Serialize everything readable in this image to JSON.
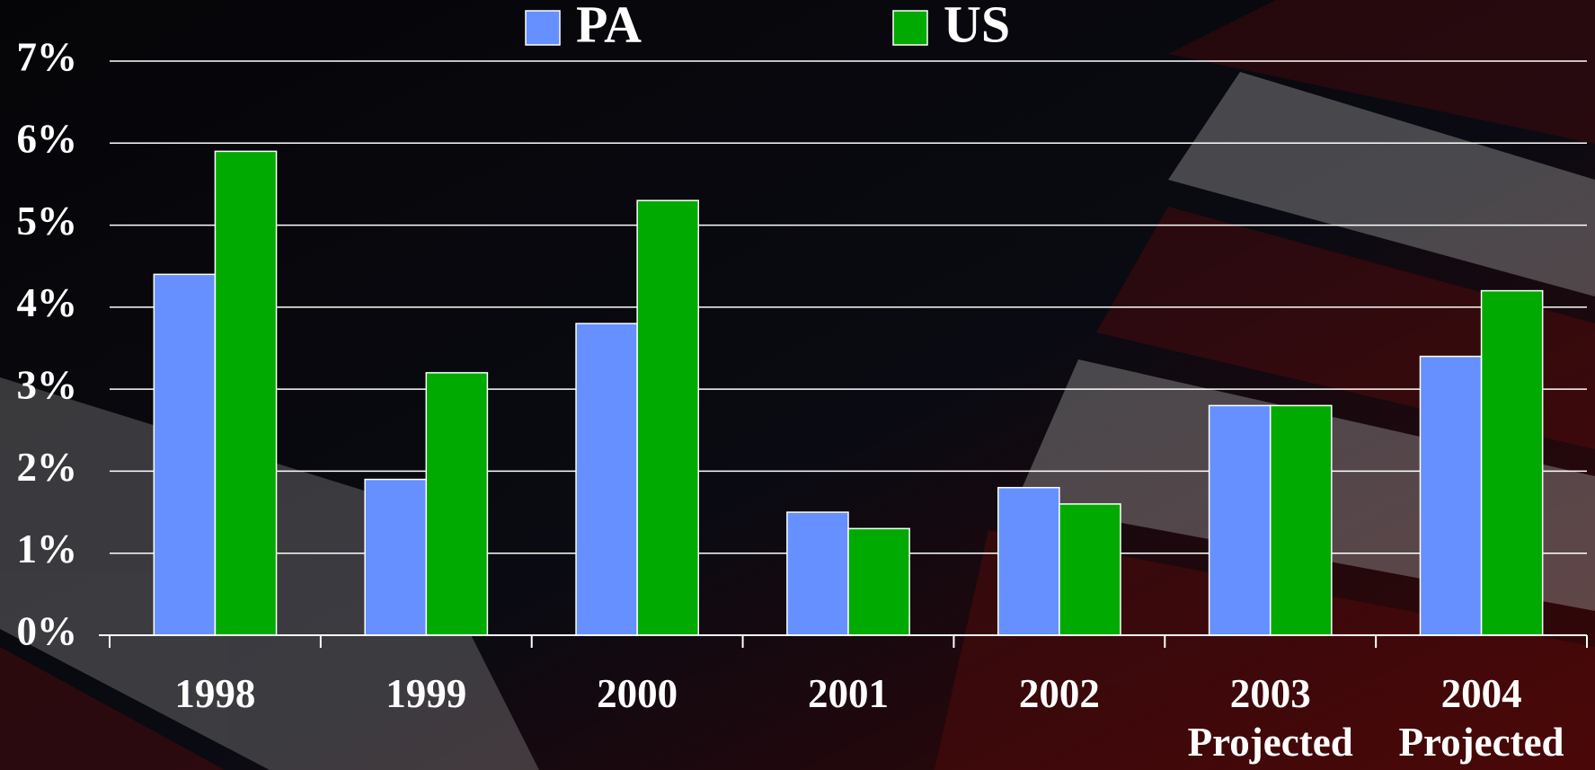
{
  "chart_data": {
    "type": "bar",
    "categories": [
      "1998",
      "1999",
      "2000",
      "2001",
      "2002",
      "2003\nProjected",
      "2004\nProjected"
    ],
    "series": [
      {
        "name": "PA",
        "color": "#6690ff",
        "values": [
          4.4,
          1.9,
          3.8,
          1.5,
          1.8,
          2.8,
          3.4
        ]
      },
      {
        "name": "US",
        "color": "#00aa00",
        "values": [
          5.9,
          3.2,
          5.3,
          1.3,
          1.6,
          2.8,
          4.2
        ]
      }
    ],
    "ylim": [
      0,
      7
    ],
    "yticks": [
      {
        "value": 0,
        "label": "0%"
      },
      {
        "value": 1,
        "label": "1%"
      },
      {
        "value": 2,
        "label": "2%"
      },
      {
        "value": 3,
        "label": "3%"
      },
      {
        "value": 4,
        "label": "4%"
      },
      {
        "value": 5,
        "label": "5%"
      },
      {
        "value": 6,
        "label": "6%"
      },
      {
        "value": 7,
        "label": "7%"
      }
    ],
    "grid": true,
    "legend": "top"
  }
}
